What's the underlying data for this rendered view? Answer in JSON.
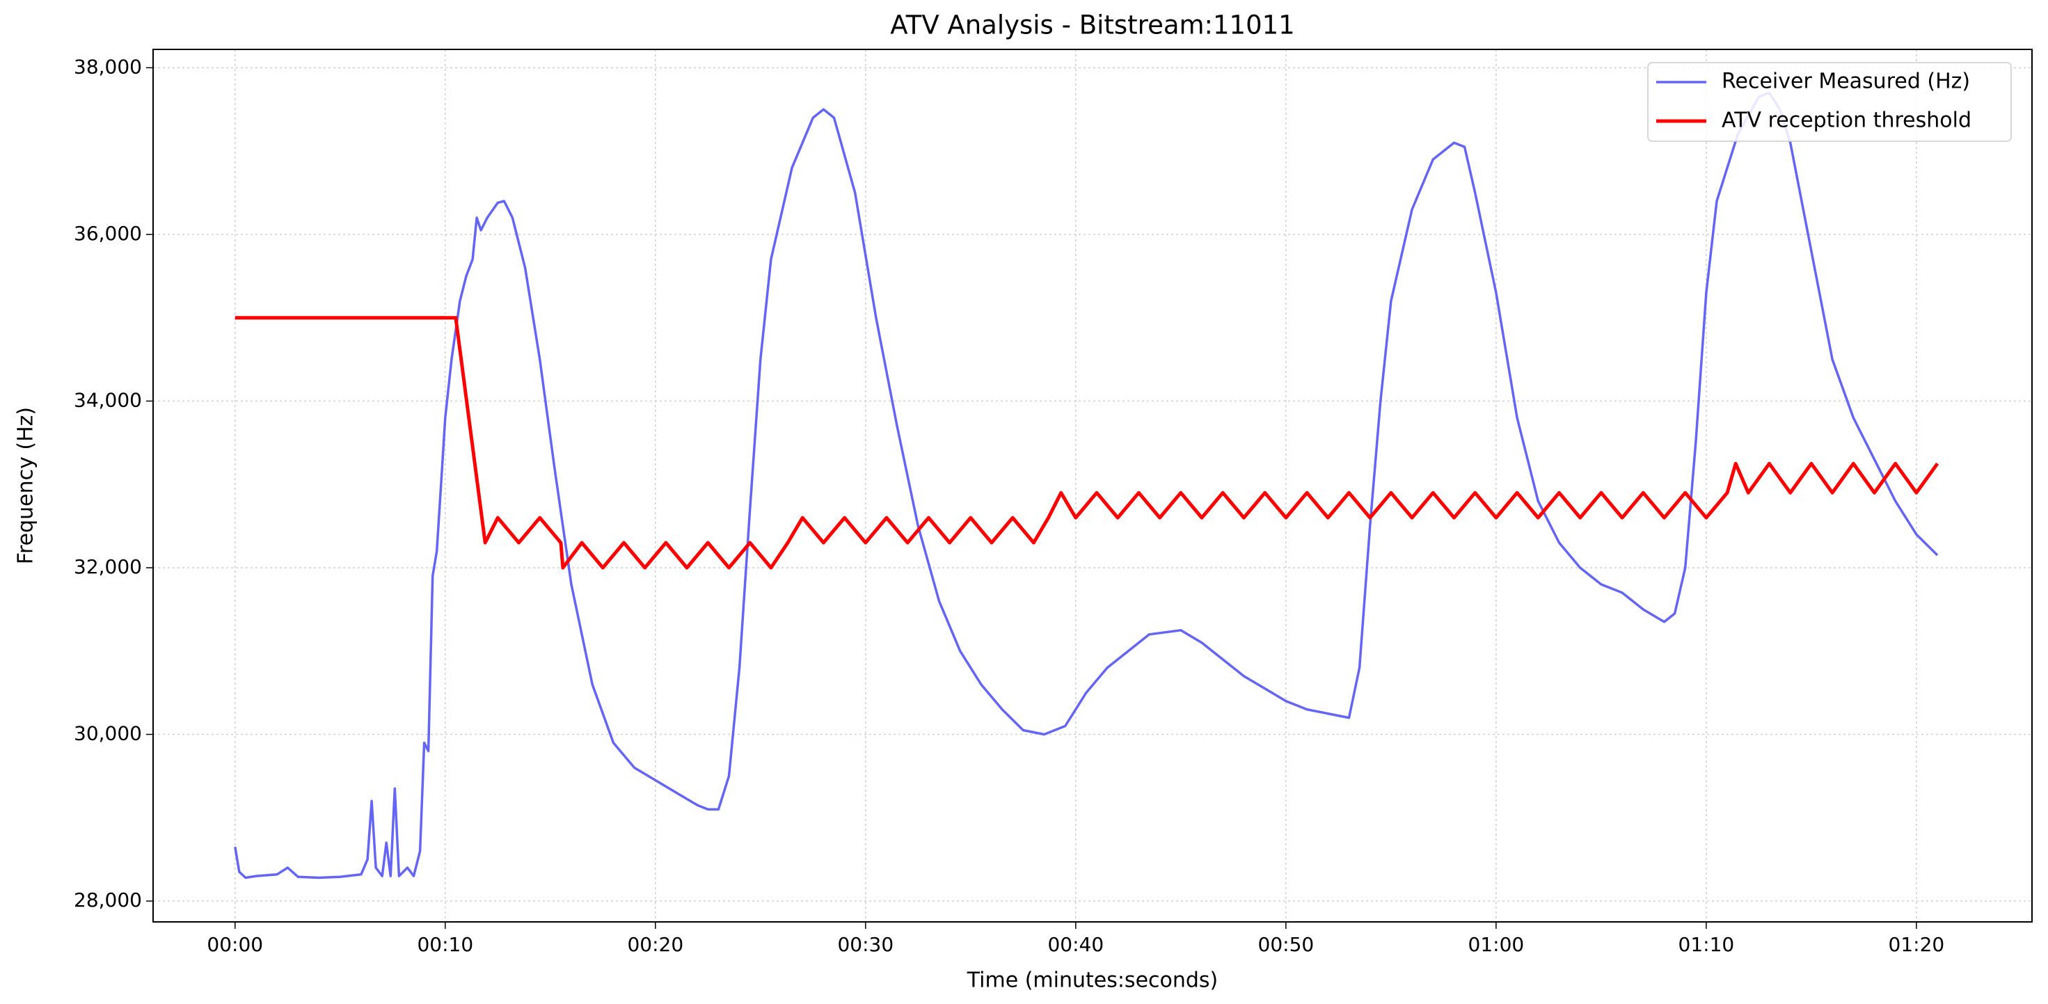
{
  "chart_data": {
    "type": "line",
    "title": "ATV Analysis - Bitstream:11011",
    "xlabel": "Time (minutes:seconds)",
    "ylabel": "Frequency (Hz)",
    "xlim": [
      -3.9,
      85.5
    ],
    "ylim": [
      27750,
      38220
    ],
    "xticks": [
      {
        "value": 0,
        "label": "00:00"
      },
      {
        "value": 10,
        "label": "00:10"
      },
      {
        "value": 20,
        "label": "00:20"
      },
      {
        "value": 30,
        "label": "00:30"
      },
      {
        "value": 40,
        "label": "00:40"
      },
      {
        "value": 50,
        "label": "00:50"
      },
      {
        "value": 60,
        "label": "01:00"
      },
      {
        "value": 70,
        "label": "01:10"
      },
      {
        "value": 80,
        "label": "01:20"
      }
    ],
    "yticks": [
      {
        "value": 28000,
        "label": "28,000"
      },
      {
        "value": 30000,
        "label": "30,000"
      },
      {
        "value": 32000,
        "label": "32,000"
      },
      {
        "value": 34000,
        "label": "34,000"
      },
      {
        "value": 36000,
        "label": "36,000"
      },
      {
        "value": 38000,
        "label": "38,000"
      }
    ],
    "grid": true,
    "legend": "upper right",
    "series": [
      {
        "name": "Receiver Measured (Hz)",
        "color": "#6464f5",
        "x": [
          0,
          0.2,
          0.5,
          1,
          2,
          2.5,
          3,
          4,
          5,
          6,
          6.3,
          6.5,
          6.7,
          7,
          7.2,
          7.4,
          7.6,
          7.8,
          8.2,
          8.5,
          8.8,
          9,
          9.2,
          9.4,
          9.6,
          9.8,
          10,
          10.3,
          10.7,
          11,
          11.3,
          11.5,
          11.7,
          12,
          12.5,
          12.8,
          13.2,
          13.8,
          14.5,
          15.2,
          16,
          17,
          18,
          19,
          20,
          21,
          22,
          22.5,
          23,
          23.5,
          24,
          24.5,
          25,
          25.5,
          26.5,
          27.5,
          28,
          28.5,
          29.5,
          30.5,
          31.5,
          32.5,
          33.5,
          34.5,
          35.5,
          36.5,
          37.5,
          38.5,
          39.5,
          40.5,
          41.5,
          42.5,
          43.5,
          45,
          46,
          47,
          48,
          49,
          50,
          51,
          52,
          53,
          53.5,
          54,
          54.5,
          55,
          56,
          57,
          58,
          58.5,
          59,
          60,
          61,
          62,
          63,
          64,
          65,
          66,
          67,
          68,
          68.5,
          69,
          69.5,
          70,
          70.5,
          71.5,
          72.5,
          73,
          73.5,
          74,
          75,
          76,
          77,
          78,
          79,
          80,
          81
        ],
        "values": [
          28650,
          28350,
          28280,
          28300,
          28320,
          28400,
          28290,
          28280,
          28290,
          28320,
          28500,
          29200,
          28400,
          28300,
          28700,
          28300,
          29350,
          28300,
          28400,
          28300,
          28600,
          29900,
          29800,
          31900,
          32200,
          33000,
          33800,
          34500,
          35200,
          35500,
          35700,
          36200,
          36050,
          36200,
          36380,
          36400,
          36200,
          35600,
          34500,
          33200,
          31800,
          30600,
          29900,
          29600,
          29450,
          29300,
          29150,
          29100,
          29100,
          29500,
          30800,
          32700,
          34500,
          35700,
          36800,
          37400,
          37500,
          37400,
          36500,
          35000,
          33700,
          32500,
          31600,
          31000,
          30600,
          30300,
          30050,
          30000,
          30100,
          30500,
          30800,
          31000,
          31200,
          31250,
          31100,
          30900,
          30700,
          30550,
          30400,
          30300,
          30250,
          30200,
          30800,
          32500,
          34000,
          35200,
          36300,
          36900,
          37100,
          37050,
          36500,
          35300,
          33800,
          32800,
          32300,
          32000,
          31800,
          31700,
          31500,
          31350,
          31450,
          32000,
          33500,
          35300,
          36400,
          37200,
          37650,
          37700,
          37500,
          37100,
          35800,
          34500,
          33800,
          33300,
          32800,
          32400,
          32150
        ]
      },
      {
        "name": "ATV reception threshold",
        "color": "#ff0000",
        "x": [
          0,
          10.5,
          11.9,
          12.5,
          13.5,
          14.5,
          15.5,
          15.6,
          16.5,
          17.5,
          18.5,
          19.5,
          20.5,
          21.5,
          22.5,
          23.5,
          24.5,
          25.5,
          26.3,
          27,
          28,
          29,
          30,
          31,
          32,
          33,
          34,
          35,
          36,
          37,
          38,
          38.7,
          39.3,
          40,
          41,
          42,
          43,
          44,
          45,
          46,
          47,
          48,
          49,
          50,
          51,
          52,
          53,
          54,
          55,
          56,
          57,
          58,
          59,
          60,
          61,
          62,
          63,
          64,
          65,
          66,
          67,
          68,
          69,
          70,
          71,
          71.4,
          72,
          73,
          74,
          75,
          76,
          77,
          78,
          79,
          80,
          81
        ],
        "values": [
          35000,
          35000,
          32300,
          32600,
          32300,
          32600,
          32300,
          32000,
          32300,
          32000,
          32300,
          32000,
          32300,
          32000,
          32300,
          32000,
          32300,
          32000,
          32300,
          32600,
          32300,
          32600,
          32300,
          32600,
          32300,
          32600,
          32300,
          32600,
          32300,
          32600,
          32300,
          32600,
          32900,
          32600,
          32900,
          32600,
          32900,
          32600,
          32900,
          32600,
          32900,
          32600,
          32900,
          32600,
          32900,
          32600,
          32900,
          32600,
          32900,
          32600,
          32900,
          32600,
          32900,
          32600,
          32900,
          32600,
          32900,
          32600,
          32900,
          32600,
          32900,
          32600,
          32900,
          32600,
          32900,
          33250,
          32900,
          33250,
          32900,
          33250,
          32900,
          33250,
          32900,
          33250,
          32900,
          33250
        ]
      }
    ]
  }
}
